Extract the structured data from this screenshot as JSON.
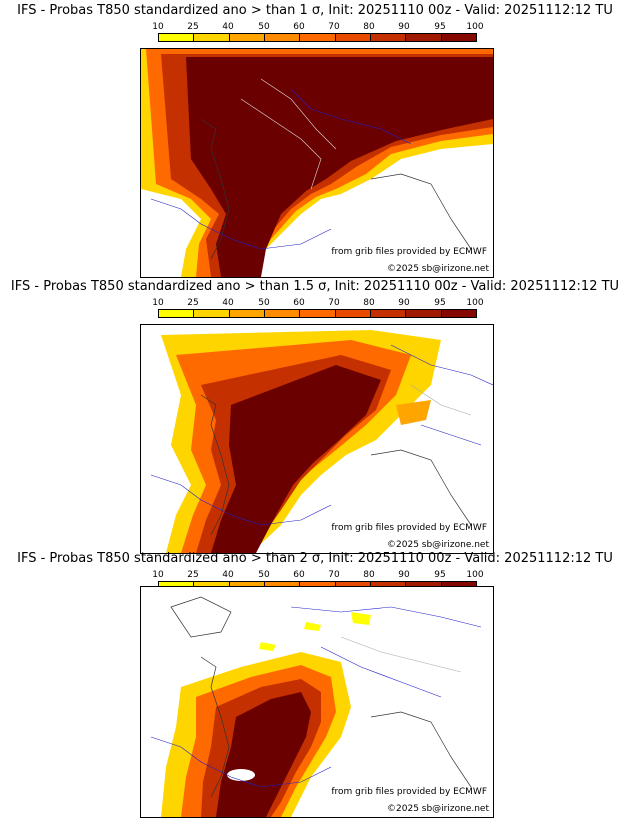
{
  "colorbar": {
    "labels": [
      "10",
      "25",
      "40",
      "50",
      "60",
      "70",
      "80",
      "90",
      "95",
      "100"
    ],
    "colors": [
      "#ffff00",
      "#ffd500",
      "#ffa500",
      "#ff8c00",
      "#ff6a00",
      "#e84a00",
      "#c43000",
      "#a01a00",
      "#850800",
      "#6a0000"
    ]
  },
  "panels": [
    {
      "title": "IFS - Probas T850  standardized ano > than 1 σ, Init: 20251110 00z - Valid: 20251112:12 TU",
      "credit_line1": "from grib files provided by ECMWF",
      "credit_line2": "©2025 sb@irizone.net",
      "level_fraction": 1.0
    },
    {
      "title": "IFS - Probas T850  standardized ano > than 1.5 σ, Init: 20251110 00z - Valid: 20251112:12 TU",
      "credit_line1": "from grib files provided by ECMWF",
      "credit_line2": "©2025 sb@irizone.net",
      "level_fraction": 0.6
    },
    {
      "title": "IFS - Probas T850  standardized ano > than 2 σ, Init: 20251110 00z - Valid: 20251112:12 TU",
      "credit_line1": "from grib files provided by ECMWF",
      "credit_line2": "©2025 sb@irizone.net",
      "level_fraction": 0.35
    }
  ]
}
